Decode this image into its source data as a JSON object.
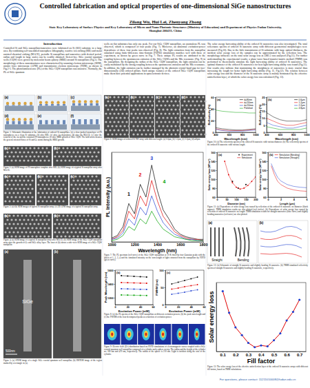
{
  "header": {
    "title": "Controlled fabrication and optical properties of one-dimensional SiGe nanostructures",
    "authors": "Zilong Wu, Hui Lei, Zhenyang Zhong",
    "affiliation": "State Key Laboratory of Surface Physics and Key Laboratory of Micro and Nano Photonic Structures (Ministry of Education) and Department of Physics Fudan University, Shanghai 200433, China"
  },
  "sections": [
    {
      "heading": "Introduction",
      "text": "Controlled Si and SiGe nanopillars/nanowires were fabricated on Si (001) substrate in a large area. By combining self-assembled nanosphere lithography, reactive ion etching (RIE) and metal assisted chemical etching (MACE), periodic Si nanopillars and nanowires with desired period, radius and length in large scales can be readily obtained. Defect-free SiGe coaxial quantum wells (CQW) were grown by molecular beam epitaxy (MBE) around Si nanopillars (Fig.1). The morphology of these nanostructures were characterized by scanning electron microscope (SEM), atomic force microscope (AFM) and transmission electron microscope (TEM), as shown in Fig.2-5. The photoluminescence (PL) of the SiGe CQW nanopillars was intensive. Normally, the PL of SiGe quantum"
    },
    {
      "text": "wells on flat substrates has only one peak. For our SiGe CQW nanopillars, an anomalous PL was observed, which is composed of four peaks (Fig. 7). Moreover, an abnormal excitation-power dependence of these four peaks was observed (Fig. 8). The light extraction from the nanopillar simulated using finite-difference time-domain (FDTD) simulations matches well with those of experiment, as shown by green curve in Fig. 7. These unique PL results are attributed to the coupling between the spontaneous emission of the SiGe CQWs and the Mie resonance (Fig. 9) in the nanopillars. By designing the radius of the SiGe CQW nanopillars, the light emission can be easily modulated by the strong coupling between the spontaneous emission and the Mie resonance. In addition, the light emission can be further managed by the photonic crystal band gap for two-dimensionally (2D) ordered pillars. Such unique features of the ordered SiGe CQW nanopillars make them have potential applications in optoelectronic devices."
    },
    {
      "text": "The solar energy harvesting ability of the ordered Si nanowires was also investigated. The total reflectance spectra of ordered Si nanowire array with different geometrical morphologies were measured (Fig.10). Due to the little transmission of Si substrate with large optical thickness, the incident solar energy loss of the samples can be approximated by the reflection loss. The morphology influence on the total solar energy loss at AM1.5 was analyzed (Fig.11). For further understanding the experimental results, a plane-wave-based transfer-matrix method (TMM) was performed to theoretically simulate the light harvesting ability of ordered Si nanowires. The optimal diameter of the ordered Si nanowires for best light harvesting ability was found (Fig.11). Our results also indicate that maintaining the straightness of nanowires is more crucial than increasing the length for better light harvesting ability (Fig. 11, Fig.12). The relation between solar energy loss and the diameter of the Si nanowire array is mainly dominated by the effective antireflection layer, of which the solar energy loss was calculated (Fig. 13)."
    }
  ],
  "figures": {
    "fig1": {
      "panels": [
        "(a)",
        "(b)",
        "(c)",
        "(d)",
        "(e)",
        "(f)"
      ],
      "caption": "Figure 1: Schematic illustration of the fabrication of ordered Si nanopillars. (a) a close-packed monolayer of PS nanospheres on a clean Si substrate; (b) after RIE; (c) after Au deposition; (d) after the MACE; (e) after the removal of the Au and the remained PS nanospheres; (f) after MBE growth of SiGe CQW. The bold arrow denotes the general oriented fluxes of Si and Ge atoms during the MBE growth."
    },
    "fig2": {
      "panels": [
        "(a)",
        "(b)"
      ],
      "caption": "Figure 2: (a) SEM image of PS nanosphere template after RIE; (b) SEM image of a typical Si nanopillar array after MACE."
    },
    "fig3": {
      "panels": [
        "(a)",
        "(b)",
        "(c)"
      ],
      "caption": "Figure 3: (a)-(b) SEM images of typical Si nanopillar array; (c) 3D AFM image of a typical Si nanopillar array."
    },
    "fig4": {
      "panels": [
        "(a)",
        "(b)"
      ],
      "caption": "Figure 4: (a) SEM image of a typical Si nanopillar array after MACE; (b) SEM image of the SiGe CQW nanopillar array after the growth of Ge and SiGe alloy layer. The inset of (b) shows a side-view SEM image of a SiGe CQW nanopillar."
    },
    "fig5": {
      "panels": [
        "(a)",
        "(b)"
      ],
      "labels": [
        "SiGe",
        "500nm"
      ],
      "caption": "Figure 5: (a) STEM image of a single SiGe coaxial quantum well nanopillar; (b) HRTEM image of the region marked by a rectangle in (a)."
    },
    "fig6": {
      "panels": [
        "(a)",
        "(b)",
        "(c)",
        "(d)"
      ],
      "caption": "Figure 6: SEM images of ordered Si NW array with different length: (a) 0.6μm, (b) 1.2μm, (c) 2.2μm, (d) 4.8μm."
    },
    "fig7": {
      "caption": "Figure 7: The PL spectrum (red curve) of the SiGe CQW nanopillars at 10 K fitted by four Gaussian peaks with the labels of 1, 2, 3, 4 and the simulated intensity on the wavelength of light extracted from the nanopillars by FDTD (green curve)."
    },
    "fig8": {
      "caption": "Figure 8: (a) the PL spectra of the SiGe CQW nanopillars at different excitation powers; (b) the peak wavelength and (c) the FWHM of the four decomposed peaks as a function of excitation power."
    },
    "fig9": {
      "caption": "Figure 9: Electric field (|E|²) distribution based on FDTD simulations of electromagnetic waves coupled with a SiGe coaxial quantum well nanopillar composed of a cylinder and a sphere on top. The radius and the height of the cylinder are 180 nm and 470 nm, respectively. The radius of the sphere is 210 nm. Light is incident along the axis of the cylinder."
    },
    "fig10": {
      "caption": "Figure 10: (a) The reflectivity spectra of the ordered Si nanowire with various diameter. (b) The reflectivity spectra of the ordered Si nanowire with various length."
    },
    "fig11": {
      "caption": "Figure 11: (a) Dependence of solar energy loss caused by reflection of the ordered Si nanowire on diameter (black squares). TMM simulation results are also plotted (red circles). (b) Dependence of solar energy loss caused by reflection of ordered Si nanowire on length. TMM simulation results for straight nanowires (blue curve) and slightly bending nanowires (red curve) are also plotted."
    },
    "fig12": {
      "panels": [
        "(a)",
        "(b)"
      ],
      "labels": [
        "Straight",
        "Bending"
      ],
      "caption": "Figure 12: (a) Schematic of straight Si nanowire and slightly bending Si nanowire. (b) TMM simulated reflectivity spectra of straight Si nanowire and slightly bending Si nanowire, respectively."
    },
    "fig13": {
      "caption": "Figure 13: The solar energy loss of the effective antireflection layer of the ordered Si nanowire arrays with different fill factors, based on TMM calculations."
    }
  },
  "footer": "For questions, please contact: 11211010008@fudan.edu.cn",
  "chart_data": [
    {
      "type": "line",
      "xlabel": "Wavelength (nm)",
      "ylabel": "PL Intensity (a.u.)",
      "tick_labels": "x",
      "x": [
        1000,
        1050,
        1100,
        1150,
        1200,
        1250,
        1300,
        1350,
        1400,
        1450,
        1500,
        1550,
        1600,
        1650,
        1700,
        1750,
        1800
      ],
      "series": [
        {
          "color": "#000000",
          "values": [
            0.3,
            0.5,
            1.2,
            3.0,
            2.2,
            4.5,
            3.5,
            6.0,
            4.0,
            2.5,
            1.8,
            1.0,
            0.6,
            0.4,
            0.3,
            0.2,
            0.2
          ]
        },
        {
          "color": "#e00000",
          "values": [
            0.2,
            0.4,
            0.9,
            2.4,
            1.8,
            3.6,
            2.8,
            4.8,
            3.2,
            2.0,
            1.4,
            0.8,
            0.5,
            0.3,
            0.2,
            0.2,
            0.1
          ]
        },
        {
          "color": "#1f3fd0",
          "values": [
            0.2,
            0.3,
            0.7,
            1.8,
            1.3,
            2.7,
            2.1,
            3.6,
            2.4,
            1.5,
            1.0,
            0.6,
            0.4,
            0.2,
            0.2,
            0.1,
            0.1
          ]
        },
        {
          "color": "#00a000",
          "values": [
            0.1,
            0.2,
            0.5,
            1.2,
            0.9,
            1.8,
            1.4,
            2.4,
            1.6,
            1.0,
            0.7,
            0.4,
            0.3,
            0.2,
            0.1,
            0.1,
            0.1
          ]
        }
      ],
      "xlim": [
        1000,
        1800
      ],
      "xticks": [
        1000,
        1200,
        1400,
        1600,
        1800
      ],
      "ylim": [
        0,
        7
      ],
      "annotations": [
        {
          "text": "1",
          "x": 1150,
          "y": 3.6
        },
        {
          "text": "2",
          "x": 1250,
          "y": 5.1
        },
        {
          "text": "3",
          "x": 1350,
          "y": 6.4
        },
        {
          "text": "4",
          "x": 1460,
          "y": 4.6
        }
      ]
    },
    {
      "type": "line",
      "title": "(b)",
      "xlabel": "Excitation Power (mW)",
      "ylabel": "Peak Wavelength (nm)",
      "marker": "square",
      "x": [
        10,
        20,
        30,
        40,
        50
      ],
      "series": [
        {
          "color": "#000000",
          "values": [
            1520,
            1515,
            1510,
            1505,
            1500
          ]
        },
        {
          "color": "#e00000",
          "values": [
            1420,
            1418,
            1415,
            1412,
            1410
          ]
        },
        {
          "color": "#1f3fd0",
          "values": [
            1330,
            1328,
            1325,
            1322,
            1320
          ]
        },
        {
          "color": "#00a000",
          "values": [
            1240,
            1238,
            1236,
            1234,
            1232
          ]
        }
      ],
      "xlim": [
        0,
        60
      ],
      "xticks": [
        0,
        20,
        40,
        60
      ],
      "ylim": [
        1100,
        1600
      ],
      "yticks": [
        1200,
        1400,
        1600
      ]
    },
    {
      "type": "line",
      "title": "(c)",
      "xlabel": "Excitation Power (mW)",
      "ylabel": "FWHM (nm)",
      "marker": "circle",
      "x": [
        10,
        20,
        30,
        40,
        50
      ],
      "series": [
        {
          "color": "#000000",
          "values": [
            60,
            65,
            70,
            75,
            80
          ]
        },
        {
          "color": "#e00000",
          "values": [
            45,
            48,
            52,
            55,
            58
          ]
        },
        {
          "color": "#1f3fd0",
          "values": [
            30,
            33,
            36,
            40,
            43
          ]
        }
      ],
      "xlim": [
        0,
        60
      ],
      "xticks": [
        0,
        20,
        40,
        60
      ],
      "ylim": [
        0,
        100
      ],
      "yticks": [
        0,
        50,
        100
      ]
    },
    {
      "type": "line",
      "title": "(a)",
      "xlabel": "Wavelength (nm)",
      "ylabel": "Reflectivity (%)",
      "legend": "upper right",
      "x": [
        400,
        500,
        600,
        700,
        800,
        900,
        1000
      ],
      "series": [
        {
          "name": "d=80nm",
          "color": "#000000",
          "values": [
            8,
            6,
            5,
            4,
            4,
            5,
            6
          ]
        },
        {
          "name": "d=110nm",
          "color": "#e00000",
          "values": [
            6,
            4,
            3,
            3,
            3,
            4,
            5
          ]
        },
        {
          "name": "d=150nm",
          "color": "#1f3fd0",
          "values": [
            5,
            3,
            2,
            2,
            2,
            3,
            4
          ]
        },
        {
          "name": "Polished",
          "color": "#00a000",
          "values": [
            38,
            36,
            35,
            34,
            34,
            33,
            33
          ]
        }
      ],
      "xlim": [
        400,
        1000
      ],
      "xticks": [
        400,
        600,
        800,
        1000
      ],
      "ylim": [
        0,
        60
      ],
      "yticks": [
        0,
        20,
        40,
        60
      ]
    },
    {
      "type": "line",
      "title": "(b)",
      "xlabel": "Wavelength (nm)",
      "ylabel": "Reflectivity (%)",
      "legend": "upper right",
      "x": [
        400,
        500,
        600,
        700,
        800,
        900,
        1000
      ],
      "series": [
        {
          "name": "0.6μm",
          "color": "#000000",
          "values": [
            14,
            11,
            9,
            8,
            8,
            8,
            9
          ]
        },
        {
          "name": "1.2μm",
          "color": "#e00000",
          "values": [
            10,
            8,
            6,
            5,
            5,
            6,
            7
          ]
        },
        {
          "name": "2.2μm",
          "color": "#1f3fd0",
          "values": [
            7,
            5,
            4,
            3,
            3,
            4,
            5
          ]
        },
        {
          "name": "4.8μm",
          "color": "#00a000",
          "values": [
            4,
            3,
            2,
            2,
            2,
            2,
            3
          ]
        }
      ],
      "xlim": [
        400,
        1000
      ],
      "xticks": [
        400,
        600,
        800,
        1000
      ],
      "ylim": [
        0,
        25
      ],
      "yticks": [
        0,
        5,
        10,
        15,
        20,
        25
      ]
    },
    {
      "type": "line",
      "title": "(a)",
      "xlabel": "Diameter (nm)",
      "ylabel": "Solar energy loss (W*m⁻²)",
      "legend": "upper right",
      "series": [
        {
          "name": "Experiment",
          "type": "scatter",
          "marker": "square",
          "color": "#000000",
          "x": [
            80,
            110,
            150
          ],
          "values": [
            95,
            80,
            88
          ]
        },
        {
          "name": "Simulation",
          "color": "#e00000",
          "marker": "circle",
          "x": [
            40,
            60,
            80,
            100,
            120,
            140,
            160,
            180,
            200
          ],
          "values": [
            140,
            110,
            92,
            82,
            78,
            80,
            86,
            95,
            105
          ]
        }
      ],
      "xlim": [
        0,
        200
      ],
      "xticks": [
        0,
        50,
        100,
        150,
        200
      ],
      "ylim": [
        60,
        160
      ],
      "yticks": [
        60,
        80,
        100,
        120,
        140,
        160
      ]
    },
    {
      "type": "line",
      "title": "(b)",
      "xlabel": "Length (μm)",
      "ylabel": "Solar energy loss (W*m⁻²)",
      "legend": "upper right",
      "x": [
        0.5,
        1,
        1.5,
        2,
        3,
        4,
        5,
        6
      ],
      "series": [
        {
          "name": "Simulation (Bending)",
          "color": "#e00000",
          "values": [
            130,
            110,
            95,
            88,
            80,
            76,
            74,
            73
          ]
        },
        {
          "name": "Simulation (Straight)",
          "color": "#1f3fd0",
          "values": [
            135,
            118,
            104,
            96,
            88,
            84,
            82,
            81
          ]
        }
      ],
      "xlim": [
        0,
        6
      ],
      "xticks": [
        0,
        2,
        4,
        6
      ],
      "ylim": [
        60,
        160
      ],
      "yticks": [
        60,
        80,
        100,
        120,
        140,
        160
      ]
    },
    {
      "type": "line",
      "xlabel": "Fill factor",
      "ylabel": "Solar energy loss",
      "tick_labels": "x",
      "marker": "circle",
      "x": [
        0.1,
        0.15,
        0.2,
        0.25,
        0.3,
        0.35,
        0.4,
        0.45,
        0.5,
        0.55,
        0.6,
        0.65,
        0.7
      ],
      "series": [
        {
          "color": "#e00000",
          "values": [
            9.0,
            6.5,
            4.8,
            3.9,
            3.0,
            2.5,
            2.7,
            2.6,
            3.3,
            4.1,
            5.6,
            6.6,
            8.0
          ]
        }
      ],
      "xlim": [
        0.05,
        0.75
      ],
      "xticks": [
        0.1,
        0.2,
        0.3,
        0.4,
        0.5,
        0.6,
        0.7
      ],
      "ylim": [
        2,
        10
      ]
    }
  ]
}
